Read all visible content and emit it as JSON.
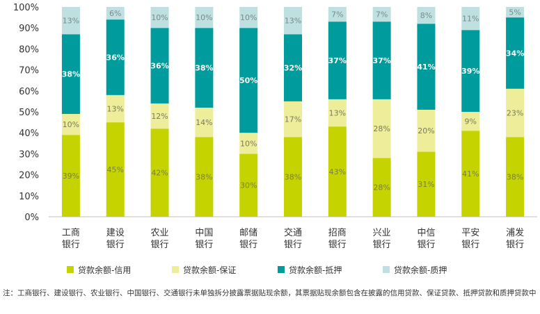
{
  "chart_data": {
    "type": "bar",
    "stacked": true,
    "categories": [
      "工商\n银行",
      "建设\n银行",
      "农业\n银行",
      "中国\n银行",
      "邮储\n银行",
      "交通\n银行",
      "招商\n银行",
      "兴业\n银行",
      "中信\n银行",
      "平安\n银行",
      "浦发\n银行"
    ],
    "series": [
      {
        "name": "贷款余额-信用",
        "color": "#c5d400",
        "label_color": "#7a7f45",
        "values": [
          39,
          45,
          42,
          38,
          30,
          38,
          43,
          28,
          31,
          41,
          38
        ]
      },
      {
        "name": "贷款余额-保证",
        "color": "#eeee9a",
        "label_color": "#7a7a60",
        "values": [
          10,
          13,
          12,
          14,
          10,
          17,
          13,
          28,
          20,
          9,
          23
        ]
      },
      {
        "name": "贷款余额-抵押",
        "color": "#009b9c",
        "label_color": "#ffffff",
        "values": [
          38,
          36,
          36,
          38,
          50,
          32,
          37,
          37,
          41,
          39,
          34
        ]
      },
      {
        "name": "贷款余额-质押",
        "color": "#bfe0e0",
        "label_color": "#7a8a8a",
        "values": [
          13,
          6,
          10,
          10,
          10,
          13,
          7,
          7,
          8,
          11,
          5
        ]
      }
    ],
    "value_suffix": "%",
    "ylim": [
      0,
      100
    ],
    "yticks": [
      "0%",
      "10%",
      "20%",
      "30%",
      "40%",
      "50%",
      "60%",
      "70%",
      "80%",
      "90%",
      "100%"
    ],
    "legend_position": "bottom",
    "grid": false
  },
  "footnote": "注：工商银行、建设银行、农业银行、中国银行、交通银行未单独拆分披露票据贴现余额，其票据贴现余额包含在披露的信用贷款、保证贷款、抵押贷款和质押贷款中"
}
